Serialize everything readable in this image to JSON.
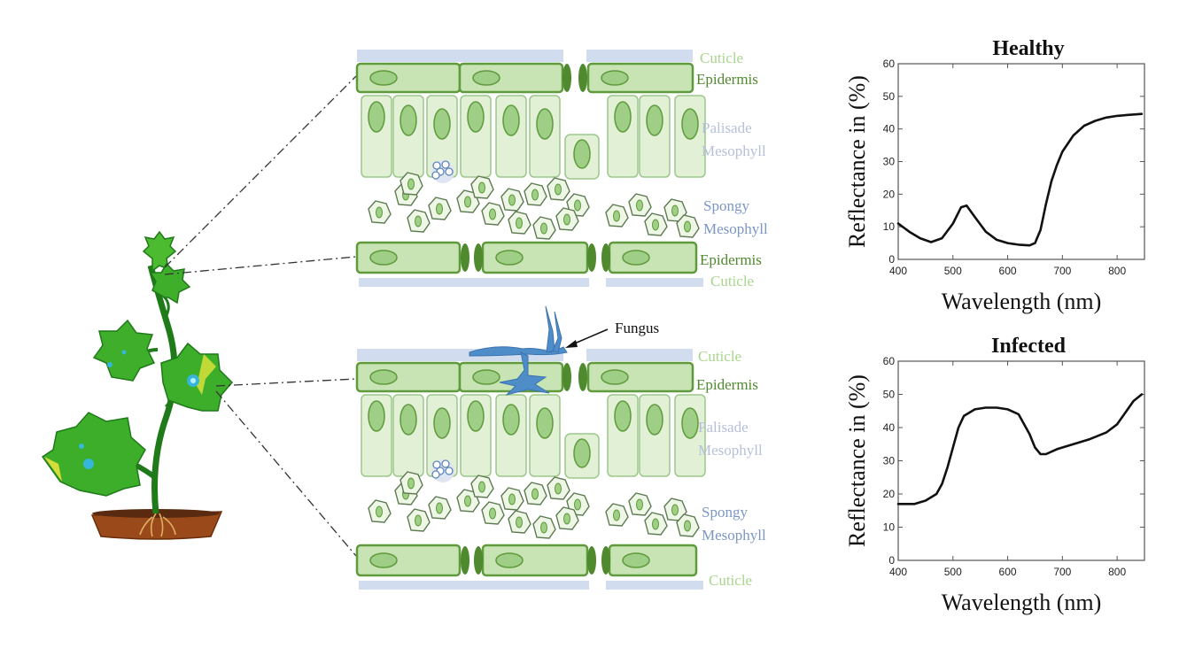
{
  "labels": {
    "cuticle": "Cuticle",
    "epidermis": "Epidermis",
    "palisade_1": "Palisade",
    "palisade_2": "Mesophyll",
    "spongy_1": "Spongy",
    "spongy_2": "Mesophyll",
    "fungus": "Fungus"
  },
  "colors": {
    "cuticle": "#d2dcef",
    "epidermis_fill": "#c8e4b4",
    "epidermis_stroke": "#5f9a3c",
    "nucleus": "#9fcf86",
    "palisade_fill": "#e2f0d6",
    "palisade_stroke": "#9cc78a",
    "spongy_fill": "#eef6e6",
    "spongy_stroke": "#5e7a52",
    "fungus": "#4f8dc9",
    "label_cuticle": "#a9d68c",
    "label_epidermis": "#4f8a2e",
    "label_palisade": "#b6c0d8",
    "label_spongy": "#7c96c4",
    "pot": "#9a4a1a",
    "leaf": "#3fae2a",
    "leaf_dark": "#1f7a1a",
    "leaf_yellow": "#e8e23a",
    "spot": "#36b6d8"
  },
  "chart_data": [
    {
      "type": "line",
      "title": "Healthy",
      "xlabel": "Wavelength (nm)",
      "ylabel": "Reflectance in (%)",
      "xlim": [
        400,
        850
      ],
      "ylim": [
        0,
        60
      ],
      "x_ticks": [
        400,
        500,
        600,
        700,
        800
      ],
      "y_ticks": [
        0,
        10,
        20,
        30,
        40,
        50,
        60
      ],
      "grid": false,
      "series": [
        {
          "x": [
            400,
            420,
            440,
            460,
            480,
            500,
            515,
            525,
            540,
            560,
            580,
            600,
            620,
            640,
            650,
            660,
            670,
            680,
            690,
            700,
            720,
            740,
            760,
            780,
            800,
            820,
            845
          ],
          "y": [
            11,
            8.5,
            6.5,
            5.3,
            6.5,
            11,
            16,
            16.5,
            13,
            8.5,
            6,
            5,
            4.5,
            4.3,
            5,
            9,
            17,
            24,
            29,
            33,
            38,
            41,
            42.5,
            43.5,
            44,
            44.3,
            44.6
          ]
        }
      ]
    },
    {
      "type": "line",
      "title": "Infected",
      "xlabel": "Wavelength (nm)",
      "ylabel": "Reflectance in (%)",
      "xlim": [
        400,
        850
      ],
      "ylim": [
        0,
        60
      ],
      "x_ticks": [
        400,
        500,
        600,
        700,
        800
      ],
      "y_ticks": [
        0,
        10,
        20,
        30,
        40,
        50,
        60
      ],
      "grid": false,
      "series": [
        {
          "x": [
            400,
            430,
            450,
            470,
            480,
            490,
            500,
            510,
            520,
            540,
            560,
            580,
            600,
            620,
            640,
            650,
            660,
            670,
            690,
            720,
            750,
            780,
            800,
            815,
            830,
            845
          ],
          "y": [
            17,
            17,
            18,
            20,
            23,
            28,
            34,
            40,
            43.5,
            45.5,
            46,
            46,
            45.5,
            44,
            38,
            34,
            32,
            32,
            33.5,
            35,
            36.5,
            38.5,
            41,
            44.5,
            48,
            50
          ]
        }
      ]
    }
  ]
}
